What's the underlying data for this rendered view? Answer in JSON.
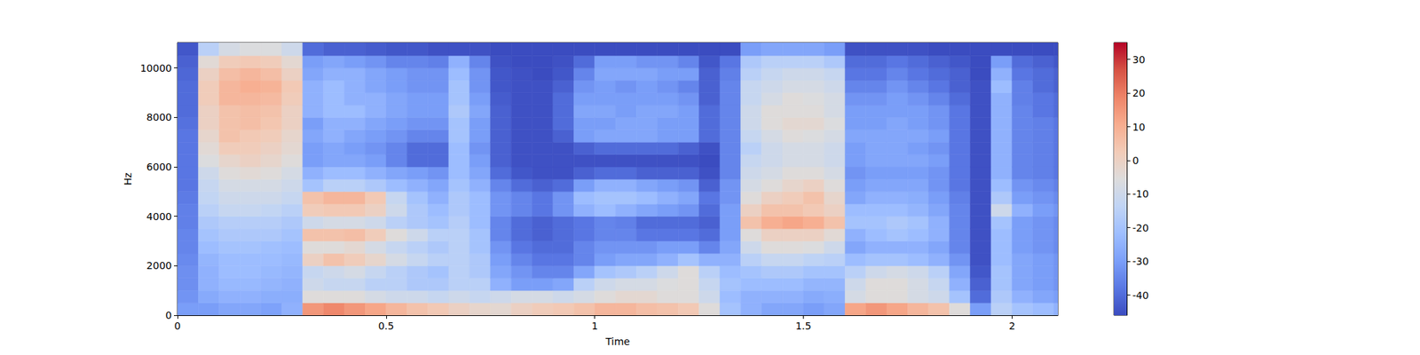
{
  "chart_data": {
    "type": "heatmap",
    "x_label": "Time",
    "y_label": "Hz",
    "x": [
      0,
      0.05,
      0.1,
      0.15,
      0.2,
      0.25,
      0.3,
      0.35,
      0.4,
      0.45,
      0.5,
      0.55,
      0.6,
      0.65,
      0.7,
      0.75,
      0.8,
      0.85,
      0.9,
      0.95,
      1.0,
      1.05,
      1.1,
      1.15,
      1.2,
      1.25,
      1.3,
      1.35,
      1.4,
      1.45,
      1.5,
      1.55,
      1.6,
      1.65,
      1.7,
      1.75,
      1.8,
      1.85,
      1.9,
      1.95,
      2.0,
      2.05,
      2.1
    ],
    "y": [
      0,
      500,
      1000,
      1500,
      2000,
      2500,
      3000,
      3500,
      4000,
      4500,
      5000,
      5500,
      6000,
      6500,
      7000,
      7500,
      8000,
      8500,
      9000,
      9500,
      10000,
      10500
    ],
    "cells": [
      [
        -30,
        -32,
        -33,
        -33,
        -34,
        -35,
        -35,
        -36,
        -36,
        -37,
        -38,
        -38,
        -38,
        -38,
        -38,
        -39,
        -40,
        -40,
        -40,
        -41,
        -42,
        -44
      ],
      [
        -30,
        -27,
        -25,
        -25,
        -24,
        -22,
        -20,
        -18,
        -15,
        -13,
        -12,
        -10,
        -6,
        -4,
        -2,
        0,
        0,
        2,
        2,
        0,
        -4,
        -15
      ],
      [
        -28,
        -25,
        -23,
        -22,
        -22,
        -20,
        -18,
        -16,
        -12,
        -10,
        -8,
        -5,
        -2,
        2,
        5,
        5,
        5,
        8,
        8,
        6,
        2,
        -8
      ],
      [
        -28,
        -25,
        -23,
        -22,
        -22,
        -20,
        -18,
        -16,
        -12,
        -10,
        -8,
        -4,
        0,
        2,
        3,
        6,
        6,
        8,
        10,
        8,
        3,
        -6
      ],
      [
        -29,
        -26,
        -24,
        -23,
        -22,
        -21,
        -18,
        -16,
        -13,
        -10,
        -8,
        -5,
        -2,
        0,
        2,
        4,
        5,
        7,
        9,
        6,
        2,
        -6
      ],
      [
        -25,
        -26,
        -25,
        -24,
        -23,
        -22,
        -20,
        -18,
        -15,
        -12,
        -10,
        -8,
        -5,
        -3,
        -2,
        0,
        0,
        2,
        3,
        0,
        -3,
        -10
      ],
      [
        15,
        -5,
        -10,
        -12,
        0,
        -5,
        5,
        -10,
        2,
        5,
        -20,
        -25,
        -30,
        -30,
        -28,
        -30,
        -25,
        -25,
        -25,
        -28,
        -30,
        -40
      ],
      [
        18,
        -5,
        -12,
        -10,
        5,
        -5,
        5,
        -8,
        3,
        8,
        -15,
        -22,
        -28,
        -28,
        -25,
        -25,
        -22,
        -22,
        -22,
        -25,
        -28,
        -42
      ],
      [
        15,
        -5,
        -12,
        -8,
        2,
        -3,
        6,
        -8,
        3,
        8,
        -15,
        -22,
        -28,
        -30,
        -28,
        -25,
        -22,
        -25,
        -25,
        -25,
        -30,
        -42
      ],
      [
        12,
        -8,
        -15,
        -12,
        -2,
        -8,
        2,
        -10,
        0,
        3,
        -18,
        -25,
        -30,
        -32,
        -30,
        -28,
        -25,
        -25,
        -28,
        -28,
        -32,
        -43
      ],
      [
        8,
        -10,
        -15,
        -15,
        -8,
        -12,
        -5,
        -15,
        -10,
        -12,
        -22,
        -28,
        -35,
        -35,
        -32,
        -30,
        -28,
        -28,
        -30,
        -30,
        -35,
        -44
      ],
      [
        5,
        -10,
        -18,
        -18,
        -12,
        -15,
        -10,
        -18,
        -18,
        -20,
        -25,
        -30,
        -40,
        -40,
        -35,
        -32,
        -30,
        -30,
        -32,
        -32,
        -35,
        -44
      ],
      [
        3,
        -12,
        -18,
        -20,
        -15,
        -18,
        -15,
        -20,
        -22,
        -25,
        -28,
        -32,
        -40,
        -40,
        -35,
        -32,
        -30,
        -30,
        -32,
        -32,
        -36,
        -45
      ],
      [
        0,
        -10,
        -15,
        -15,
        -15,
        -15,
        -15,
        -16,
        -18,
        -18,
        -20,
        -22,
        -22,
        -22,
        -20,
        -20,
        -18,
        -20,
        -20,
        -22,
        -25,
        -45
      ],
      [
        -2,
        -12,
        -15,
        -18,
        -18,
        -20,
        -20,
        -22,
        -22,
        -22,
        -25,
        -28,
        -30,
        -32,
        -30,
        -30,
        -28,
        -30,
        -32,
        -32,
        -35,
        -45
      ],
      [
        -3,
        -10,
        -25,
        -28,
        -30,
        -32,
        -35,
        -35,
        -32,
        -32,
        -35,
        -40,
        -42,
        -42,
        -42,
        -42,
        -42,
        -43,
        -44,
        -44,
        -45,
        -46
      ],
      [
        0,
        -8,
        -30,
        -32,
        -35,
        -38,
        -40,
        -40,
        -35,
        -35,
        -40,
        -44,
        -45,
        -45,
        -45,
        -45,
        -45,
        -45,
        -45,
        -45,
        -46,
        -46
      ],
      [
        2,
        -8,
        -30,
        -35,
        -38,
        -40,
        -42,
        -42,
        -38,
        -38,
        -42,
        -45,
        -45,
        -45,
        -45,
        -45,
        -45,
        -45,
        -45,
        -46,
        -46,
        -46
      ],
      [
        3,
        -10,
        -28,
        -35,
        -38,
        -40,
        -40,
        -40,
        -32,
        -32,
        -40,
        -45,
        -45,
        -45,
        -42,
        -40,
        -40,
        -40,
        -42,
        -44,
        -45,
        -46
      ],
      [
        5,
        -8,
        -15,
        -28,
        -35,
        -35,
        -38,
        -38,
        -25,
        -22,
        -30,
        -42,
        -45,
        -42,
        -30,
        -30,
        -28,
        -30,
        -32,
        -35,
        -40,
        -46
      ],
      [
        8,
        -5,
        -10,
        -20,
        -30,
        -32,
        -35,
        -35,
        -22,
        -20,
        -25,
        -40,
        -45,
        -40,
        -28,
        -30,
        -28,
        -30,
        -30,
        -28,
        -30,
        -46
      ],
      [
        8,
        -3,
        -8,
        -18,
        -28,
        -32,
        -35,
        -36,
        -25,
        -20,
        -25,
        -40,
        -45,
        -40,
        -28,
        -28,
        -30,
        -30,
        -32,
        -28,
        -30,
        -46
      ],
      [
        6,
        -3,
        -8,
        -15,
        -28,
        -32,
        -38,
        -40,
        -28,
        -22,
        -28,
        -42,
        -45,
        -40,
        -28,
        -28,
        -28,
        -30,
        -30,
        -28,
        -32,
        -46
      ],
      [
        5,
        -5,
        -6,
        -10,
        -25,
        -30,
        -38,
        -40,
        -30,
        -25,
        -30,
        -42,
        -45,
        -40,
        -30,
        -30,
        -28,
        -30,
        -32,
        -30,
        -32,
        -46
      ],
      [
        3,
        -5,
        -5,
        -5,
        -20,
        -30,
        -38,
        -40,
        -32,
        -28,
        -32,
        -42,
        -45,
        -42,
        -30,
        -30,
        -30,
        -32,
        -35,
        -30,
        -35,
        -46
      ],
      [
        -5,
        -10,
        -12,
        -15,
        -25,
        -35,
        -40,
        -42,
        -40,
        -38,
        -42,
        -45,
        -46,
        -45,
        -40,
        -40,
        -40,
        -42,
        -42,
        -42,
        -44,
        -46
      ],
      [
        -20,
        -22,
        -20,
        -22,
        -25,
        -28,
        -30,
        -30,
        -30,
        -32,
        -32,
        -35,
        -35,
        -35,
        -35,
        -35,
        -35,
        -35,
        -35,
        -36,
        -38,
        -46
      ],
      [
        -25,
        -25,
        -22,
        -20,
        -15,
        -10,
        -5,
        5,
        0,
        -5,
        -8,
        -10,
        -12,
        -15,
        -12,
        -10,
        -10,
        -12,
        -12,
        -15,
        -18,
        -30
      ],
      [
        -28,
        -25,
        -22,
        -18,
        -12,
        -5,
        0,
        10,
        5,
        0,
        -5,
        -8,
        -10,
        -10,
        -8,
        -5,
        -5,
        -8,
        -10,
        -12,
        -15,
        -28
      ],
      [
        -28,
        -25,
        -22,
        -18,
        -12,
        -5,
        0,
        12,
        5,
        2,
        -2,
        -5,
        -8,
        -8,
        -5,
        -3,
        -5,
        -5,
        -8,
        -10,
        -15,
        -28
      ],
      [
        -30,
        -27,
        -24,
        -20,
        -14,
        -6,
        0,
        10,
        3,
        5,
        0,
        -5,
        -8,
        -8,
        -6,
        -3,
        -5,
        -6,
        -8,
        -10,
        -15,
        -28
      ],
      [
        -28,
        -26,
        -24,
        -20,
        -15,
        -10,
        -4,
        5,
        0,
        -2,
        -5,
        -8,
        -10,
        -10,
        -8,
        -6,
        -8,
        -8,
        -10,
        -12,
        -18,
        -30
      ],
      [
        12,
        -8,
        -10,
        -15,
        -22,
        -28,
        -25,
        -20,
        -22,
        -28,
        -30,
        -32,
        -30,
        -30,
        -28,
        -30,
        -30,
        -32,
        -35,
        -38,
        -40,
        -45
      ],
      [
        15,
        -5,
        -5,
        -10,
        -20,
        -25,
        -22,
        -20,
        -22,
        -25,
        -28,
        -30,
        -28,
        -28,
        -28,
        -30,
        -30,
        -32,
        -35,
        -38,
        -40,
        -45
      ],
      [
        12,
        -5,
        -5,
        -8,
        -20,
        -25,
        -20,
        -18,
        -22,
        -25,
        -28,
        -30,
        -28,
        -28,
        -28,
        -28,
        -30,
        -30,
        -32,
        -35,
        -38,
        -45
      ],
      [
        8,
        -8,
        -8,
        -10,
        -22,
        -25,
        -22,
        -20,
        -24,
        -26,
        -28,
        -30,
        -28,
        -30,
        -28,
        -30,
        -30,
        -32,
        -35,
        -38,
        -40,
        -45
      ],
      [
        5,
        -10,
        -12,
        -15,
        -25,
        -28,
        -25,
        -25,
        -28,
        -30,
        -32,
        -32,
        -30,
        -32,
        -30,
        -32,
        -32,
        -35,
        -38,
        -40,
        -42,
        -46
      ],
      [
        -5,
        -20,
        -25,
        -28,
        -32,
        -35,
        -35,
        -35,
        -35,
        -36,
        -38,
        -38,
        -38,
        -38,
        -38,
        -38,
        -38,
        -40,
        -42,
        -42,
        -44,
        -46
      ],
      [
        -30,
        -40,
        -42,
        -44,
        -45,
        -45,
        -45,
        -45,
        -45,
        -45,
        -45,
        -45,
        -45,
        -45,
        -45,
        -45,
        -45,
        -45,
        -45,
        -46,
        -46,
        -46
      ],
      [
        -15,
        -18,
        -20,
        -20,
        -22,
        -22,
        -22,
        -20,
        -10,
        -18,
        -22,
        -25,
        -25,
        -25,
        -25,
        -25,
        -25,
        -25,
        -22,
        -25,
        -30,
        -46
      ],
      [
        -20,
        -25,
        -28,
        -28,
        -28,
        -30,
        -30,
        -30,
        -25,
        -30,
        -32,
        -35,
        -35,
        -35,
        -35,
        -35,
        -35,
        -36,
        -36,
        -38,
        -40,
        -46
      ],
      [
        -22,
        -28,
        -30,
        -30,
        -30,
        -32,
        -32,
        -32,
        -30,
        -32,
        -34,
        -36,
        -36,
        -36,
        -36,
        -36,
        -38,
        -38,
        -40,
        -40,
        -42,
        -46
      ],
      [
        -25,
        -30,
        -32,
        -32,
        -32,
        -34,
        -34,
        -34,
        -32,
        -34,
        -36,
        -38,
        -38,
        -38,
        -38,
        -38,
        -40,
        -40,
        -42,
        -42,
        -44,
        -46
      ]
    ],
    "xlim": [
      0,
      2.11
    ],
    "ylim": [
      0,
      11025
    ],
    "xticks": [
      0,
      0.5,
      1,
      1.5,
      2
    ],
    "yticks": [
      0,
      2000,
      4000,
      6000,
      8000,
      10000
    ],
    "color_range": [
      -46,
      35
    ],
    "color_ticks": [
      -40,
      -30,
      -20,
      -10,
      0,
      10,
      20,
      30
    ],
    "grid": false
  }
}
